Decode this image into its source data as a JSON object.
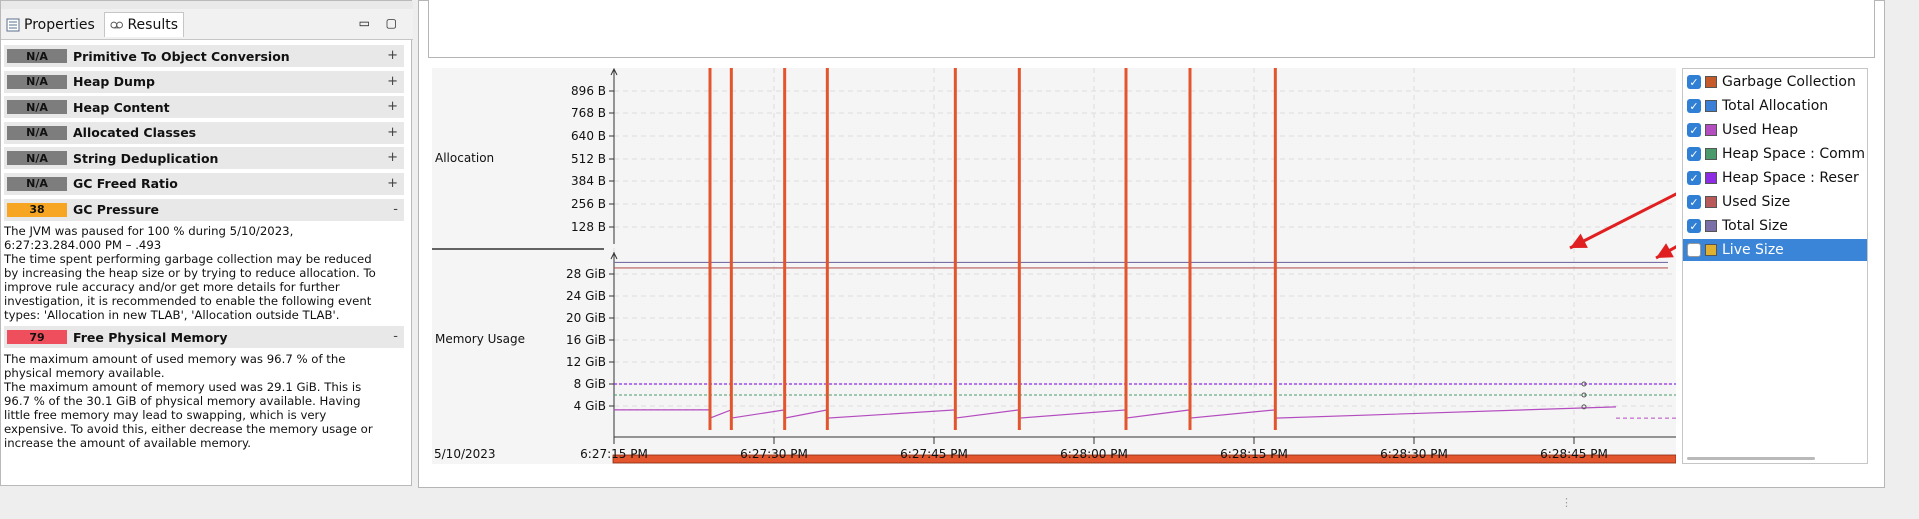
{
  "tabs": [
    {
      "label": "Properties",
      "icon": "properties-icon"
    },
    {
      "label": "Results",
      "icon": "results-icon"
    }
  ],
  "window_controls": {
    "minimize": "▭",
    "maximize": "▢"
  },
  "rules": [
    {
      "score": "N/A",
      "score_color": "#7d7d7d",
      "title": "Primitive To Object Conversion",
      "toggle": "+"
    },
    {
      "score": "N/A",
      "score_color": "#7d7d7d",
      "title": "Heap Dump",
      "toggle": "+"
    },
    {
      "score": "N/A",
      "score_color": "#7d7d7d",
      "title": "Heap Content",
      "toggle": "+"
    },
    {
      "score": "N/A",
      "score_color": "#7d7d7d",
      "title": "Allocated Classes",
      "toggle": "+"
    },
    {
      "score": "N/A",
      "score_color": "#7d7d7d",
      "title": "String Deduplication",
      "toggle": "+"
    },
    {
      "score": "N/A",
      "score_color": "#7d7d7d",
      "title": "GC Freed Ratio",
      "toggle": "+"
    },
    {
      "score": "38",
      "score_color": "#f6a623",
      "title": "GC Pressure",
      "toggle": "-",
      "description": "The JVM was paused for 100 % during 5/10/2023,\n6:27:23.284.000 PM – .493\nThe time spent performing garbage collection may be reduced\nby increasing the heap size or by trying to reduce allocation. To\nimprove rule accuracy and/or get more details for further\ninvestigation, it is recommended to enable the following event\ntypes: 'Allocation in new TLAB', 'Allocation outside TLAB'."
    },
    {
      "score": "79",
      "score_color": "#ef4f5c",
      "title": "Free Physical Memory",
      "toggle": "-",
      "description": "The maximum amount of used memory was 96.7 % of the\nphysical memory available.\nThe maximum amount of memory used was 29.1 GiB. This is\n96.7 % of the 30.1 GiB of physical memory available. Having\nlittle free memory may lead to swapping, which is very\nexpensive. To avoid this, either decrease the memory usage or\nincrease the amount of available memory."
    }
  ],
  "chart_data": {
    "type": "line",
    "date_label": "5/10/2023",
    "x_ticks": [
      "6:27:15 PM",
      "6:27:30 PM",
      "6:27:45 PM",
      "6:28:00 PM",
      "6:28:15 PM",
      "6:28:30 PM",
      "6:28:45 PM"
    ],
    "allocation_panel": {
      "label": "Allocation",
      "y_ticks": [
        "896 B",
        "768 B",
        "640 B",
        "512 B",
        "384 B",
        "256 B",
        "128 B"
      ]
    },
    "memory_panel": {
      "label": "Memory Usage",
      "y_ticks": [
        "28 GiB",
        "24 GiB",
        "20 GiB",
        "16 GiB",
        "12 GiB",
        "8 GiB",
        "4 GiB"
      ],
      "total_physical_gib": 30.1,
      "used_physical_gib": 29.1,
      "heap_committed_gib": 6.0,
      "heap_reserved_gib": 8.0,
      "used_heap_sawtooth_gib": [
        1.8,
        3.3
      ]
    },
    "gc_event_times": [
      "6:27:24",
      "6:27:26",
      "6:27:31",
      "6:27:35",
      "6:27:47",
      "6:27:53",
      "6:28:03",
      "6:28:09",
      "6:28:17"
    ],
    "colors": {
      "gc": "#e2552d",
      "total_allocation": "#3c7fd6",
      "used_heap": "#b44dbf",
      "heap_committed": "#4b9a6c",
      "heap_reserved": "#8d2ce3",
      "used_size": "#b85a5a",
      "total_size": "#7a6fa6",
      "timeline_bar": "#e2552d"
    }
  },
  "legend": [
    {
      "label": "Garbage Collection",
      "checked": true,
      "swatch": "#c55a2a"
    },
    {
      "label": "Total Allocation",
      "checked": true,
      "swatch": "#3c7fd6"
    },
    {
      "label": "Used Heap",
      "checked": true,
      "swatch": "#b44dbf"
    },
    {
      "label": "Heap Space : Comm",
      "checked": true,
      "swatch": "#4b9a6c"
    },
    {
      "label": "Heap Space : Reser",
      "checked": true,
      "swatch": "#8d2ce3"
    },
    {
      "label": "Used Size",
      "checked": true,
      "swatch": "#b85a5a"
    },
    {
      "label": "Total Size",
      "checked": true,
      "swatch": "#7a6fa6"
    },
    {
      "label": "Live Size",
      "checked": false,
      "swatch": "#e0b030",
      "selected": true
    }
  ]
}
